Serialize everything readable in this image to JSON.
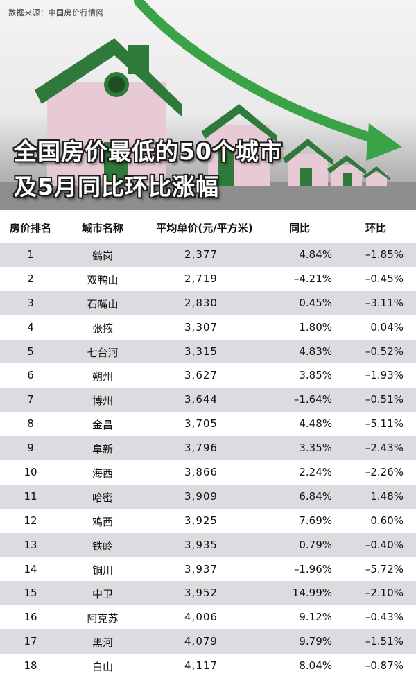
{
  "source": "数据来源：中国房价行情网",
  "title_line1": "全国房价最低的50个城市",
  "title_line2": "及5月同比环比涨幅",
  "colors": {
    "house_green": "#2f7a3a",
    "house_wall": "#e8c9d6",
    "arrow_green": "#3aa346",
    "row_stripe": "#dcdce0"
  },
  "chart_data": {
    "type": "table",
    "columns": [
      "房价排名",
      "城市名称",
      "平均单价(元/平方米)",
      "同比",
      "环比"
    ],
    "rows": [
      [
        "1",
        "鹤岗",
        "2,377",
        "4.84%",
        "–1.85%"
      ],
      [
        "2",
        "双鸭山",
        "2,719",
        "–4.21%",
        "–0.45%"
      ],
      [
        "3",
        "石嘴山",
        "2,830",
        "0.45%",
        "–3.11%"
      ],
      [
        "4",
        "张掖",
        "3,307",
        "1.80%",
        "0.04%"
      ],
      [
        "5",
        "七台河",
        "3,315",
        "4.83%",
        "–0.52%"
      ],
      [
        "6",
        "朔州",
        "3,627",
        "3.85%",
        "–1.93%"
      ],
      [
        "7",
        "博州",
        "3,644",
        "–1.64%",
        "–0.51%"
      ],
      [
        "8",
        "金昌",
        "3,705",
        "4.48%",
        "–5.11%"
      ],
      [
        "9",
        "阜新",
        "3,796",
        "3.35%",
        "–2.43%"
      ],
      [
        "10",
        "海西",
        "3,866",
        "2.24%",
        "–2.26%"
      ],
      [
        "11",
        "哈密",
        "3,909",
        "6.84%",
        "1.48%"
      ],
      [
        "12",
        "鸡西",
        "3,925",
        "7.69%",
        "0.60%"
      ],
      [
        "13",
        "铁岭",
        "3,935",
        "0.79%",
        "–0.40%"
      ],
      [
        "14",
        "铜川",
        "3,937",
        "–1.96%",
        "–5.72%"
      ],
      [
        "15",
        "中卫",
        "3,952",
        "14.99%",
        "–2.10%"
      ],
      [
        "16",
        "阿克苏",
        "4,006",
        "9.12%",
        "–0.43%"
      ],
      [
        "17",
        "黑河",
        "4,079",
        "9.79%",
        "–1.51%"
      ],
      [
        "18",
        "白山",
        "4,117",
        "8.04%",
        "–0.87%"
      ]
    ]
  }
}
